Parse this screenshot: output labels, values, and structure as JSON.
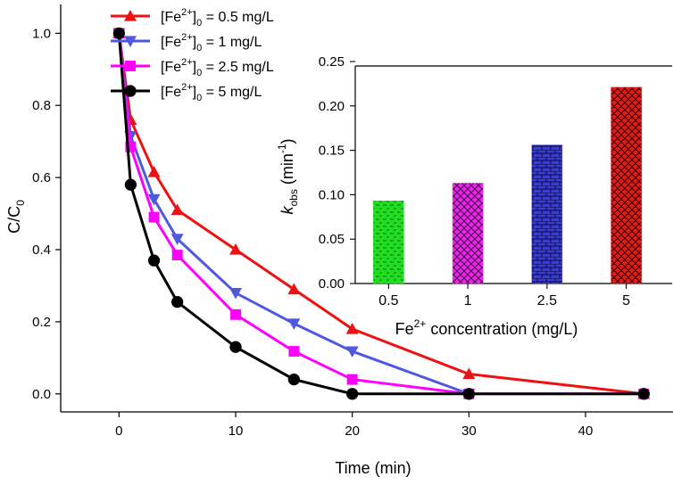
{
  "chart_data": [
    {
      "type": "line",
      "title": "",
      "xlabel": "Time (min)",
      "ylabel_main": "C/C",
      "ylabel_sub": "0",
      "xlim": [
        -5,
        47.5
      ],
      "ylim": [
        -0.05,
        1.08
      ],
      "x_ticks": [
        0,
        10,
        20,
        30,
        40
      ],
      "x_tick_labels": [
        "0",
        "10",
        "20",
        "30",
        "40"
      ],
      "y_ticks": [
        0.0,
        0.2,
        0.4,
        0.6,
        0.8,
        1.0
      ],
      "y_tick_labels": [
        "0.0",
        "0.2",
        "0.4",
        "0.6",
        "0.8",
        "1.0"
      ],
      "legend_position": "top-left",
      "series": [
        {
          "name": "[Fe2+]0 = 0.5 mg/L",
          "legend_prefix": "[Fe",
          "legend_sup": "2+",
          "legend_mid": "]",
          "legend_sub": "0",
          "legend_suffix": " = 0.5 mg/L",
          "marker": "triangle-up",
          "color": "#ee1111",
          "x": [
            0,
            1,
            3,
            5,
            10,
            15,
            20,
            30,
            45
          ],
          "y": [
            1.0,
            0.76,
            0.615,
            0.51,
            0.4,
            0.29,
            0.18,
            0.055,
            0.0
          ]
        },
        {
          "name": "[Fe2+]0 = 1 mg/L",
          "legend_prefix": "[Fe",
          "legend_sup": "2+",
          "legend_mid": "]",
          "legend_sub": "0",
          "legend_suffix": " = 1 mg/L",
          "marker": "triangle-down",
          "color": "#4f59e0",
          "x": [
            0,
            1,
            3,
            5,
            10,
            15,
            20,
            30
          ],
          "y": [
            1.0,
            0.715,
            0.54,
            0.43,
            0.28,
            0.195,
            0.118,
            0.0
          ]
        },
        {
          "name": "[Fe2+]0 = 2.5 mg/L",
          "legend_prefix": "[Fe",
          "legend_sup": "2+",
          "legend_mid": "]",
          "legend_sub": "0",
          "legend_suffix": " = 2.5 mg/L",
          "marker": "square",
          "color": "#ff00ff",
          "x": [
            0,
            1,
            3,
            5,
            10,
            15,
            20,
            30,
            45
          ],
          "y": [
            1.0,
            0.685,
            0.49,
            0.385,
            0.22,
            0.118,
            0.04,
            0.0,
            0.0
          ]
        },
        {
          "name": "[Fe2+]0 = 5 mg/L",
          "legend_prefix": "[Fe",
          "legend_sup": "2+",
          "legend_mid": "]",
          "legend_sub": "0",
          "legend_suffix": " = 5 mg/L",
          "marker": "circle",
          "color": "#000000",
          "x": [
            0,
            1,
            3,
            5,
            10,
            15,
            20,
            30,
            45
          ],
          "y": [
            1.0,
            0.58,
            0.37,
            0.255,
            0.13,
            0.04,
            0.0,
            0.0,
            0.0
          ]
        }
      ]
    },
    {
      "type": "bar",
      "title": "",
      "xlabel_prefix": "Fe",
      "xlabel_sup": "2+",
      "xlabel_suffix": " concentration (mg/L)",
      "ylabel_k": "k",
      "ylabel_sub": "obs",
      "ylabel_mid": " (min",
      "ylabel_sup": "-1",
      "ylabel_end": ")",
      "ylim": [
        0,
        0.245
      ],
      "y_ticks": [
        0.0,
        0.05,
        0.1,
        0.15,
        0.2,
        0.25
      ],
      "y_tick_labels": [
        "0.00",
        "0.05",
        "0.10",
        "0.15",
        "0.20",
        "0.25"
      ],
      "categories": [
        "0.5",
        "1",
        "2.5",
        "5"
      ],
      "values": [
        0.093,
        0.113,
        0.156,
        0.221
      ],
      "colors": [
        "#22dd22",
        "#ee22ee",
        "#3b3bd6",
        "#e41a1a"
      ],
      "patterns": [
        "dashes",
        "crosshatch",
        "bricks",
        "scales"
      ]
    }
  ]
}
